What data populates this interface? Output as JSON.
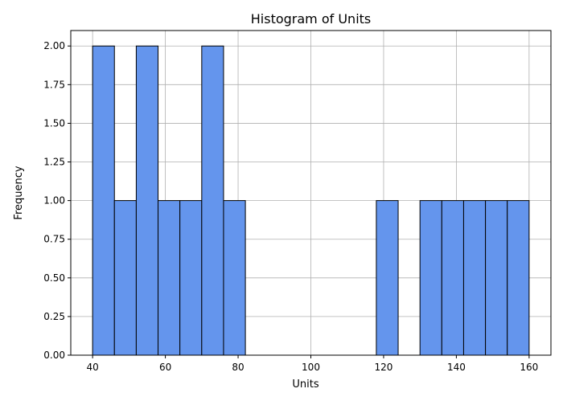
{
  "chart_data": {
    "type": "bar",
    "title": "Histogram of Units",
    "xlabel": "Units",
    "ylabel": "Frequency",
    "bin_edges": [
      40,
      46,
      52,
      58,
      64,
      70,
      76,
      82,
      88,
      94,
      100,
      106,
      112,
      118,
      124,
      130,
      136,
      142,
      148,
      154,
      160
    ],
    "values": [
      2,
      1,
      2,
      1,
      1,
      2,
      1,
      0,
      0,
      0,
      0,
      0,
      0,
      1,
      0,
      1,
      1,
      1,
      1,
      1
    ],
    "xlim": [
      34,
      166
    ],
    "ylim": [
      0,
      2.1
    ],
    "xticks": [
      40,
      60,
      80,
      100,
      120,
      140,
      160
    ],
    "xtick_labels": [
      "40",
      "60",
      "80",
      "100",
      "120",
      "140",
      "160"
    ],
    "yticks": [
      0,
      0.25,
      0.5,
      0.75,
      1.0,
      1.25,
      1.5,
      1.75,
      2.0
    ],
    "ytick_labels": [
      "0.00",
      "0.25",
      "0.50",
      "0.75",
      "1.00",
      "1.25",
      "1.50",
      "1.75",
      "2.00"
    ],
    "grid": true,
    "bar_color": "#6495ed",
    "edge_color": "#000000"
  }
}
